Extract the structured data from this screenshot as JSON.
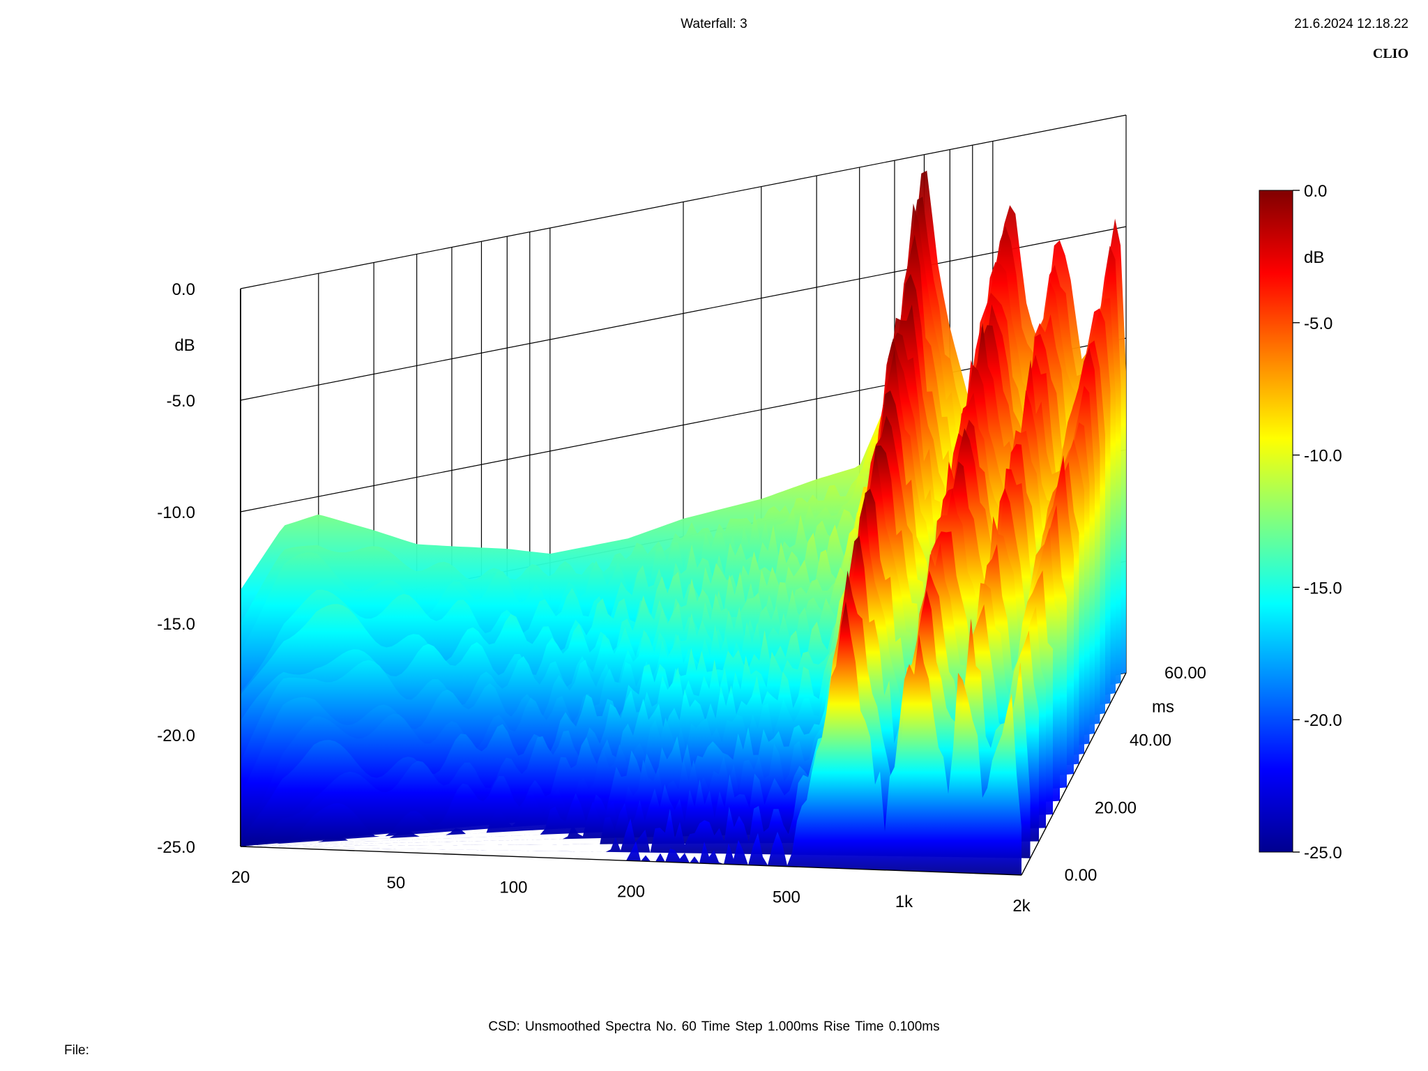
{
  "header": {
    "title": "Waterfall: 3",
    "datetime": "21.6.2024 12.18.22",
    "brand": "CLIO"
  },
  "footer": {
    "settings": "CSD:   Unsmoothed   Spectra No. 60   Time Step 1.000ms   Rise Time 0.100ms",
    "file_label": "File:"
  },
  "chart_data": {
    "type": "waterfall",
    "x_axis": {
      "scale": "log",
      "range": [
        20,
        2000
      ],
      "ticks": [
        20,
        50,
        100,
        200,
        500,
        1000,
        2000
      ],
      "tick_labels": [
        "20",
        "50",
        "100",
        "200",
        "500",
        "1k",
        "2k"
      ]
    },
    "y_axis": {
      "range": [
        -25,
        0
      ],
      "ticks": [
        0,
        -5,
        -10,
        -15,
        -20,
        -25
      ],
      "tick_labels": [
        "0.0",
        "-5.0",
        "-10.0",
        "-15.0",
        "-20.0",
        "-25.0"
      ],
      "unit": "dB"
    },
    "z_axis": {
      "range": [
        0,
        60
      ],
      "ticks": [
        0,
        20,
        40,
        60
      ],
      "tick_labels": [
        "0.00",
        "20.00",
        "40.00",
        "60.00"
      ],
      "unit": "ms"
    },
    "colorbar": {
      "range": [
        -25,
        0
      ],
      "ticks": [
        0,
        -5,
        -10,
        -15,
        -20,
        -25
      ],
      "tick_labels": [
        "0.0",
        "-5.0",
        "-10.0",
        "-15.0",
        "-20.0",
        "-25.0"
      ],
      "unit": "dB"
    },
    "spectra_count": 60,
    "time_step_ms": 1.0,
    "rise_time_ms": 0.1,
    "initial_response": {
      "freq_hz": [
        20,
        25,
        30,
        40,
        50,
        60,
        80,
        100,
        150,
        200,
        300,
        400,
        500,
        600,
        700,
        800,
        900,
        1000,
        1100,
        1200,
        1300,
        1400,
        1500,
        1600,
        1700,
        1800,
        1900,
        2000
      ],
      "db": [
        -13.5,
        -11.0,
        -10.8,
        -12.0,
        -13.0,
        -13.4,
        -14.0,
        -14.6,
        -14.6,
        -14.2,
        -14.0,
        -13.6,
        -13.4,
        -10.0,
        -2.0,
        -8.0,
        -12.0,
        -6.0,
        -3.5,
        -8.0,
        -10.0,
        -5.0,
        -7.0,
        -11.0,
        -9.0,
        -8.0,
        -6.0,
        -13.0
      ]
    },
    "resonance_peaks": [
      {
        "freq_hz": 700,
        "peak_db": -0.5
      },
      {
        "freq_hz": 1100,
        "peak_db": -3.0
      },
      {
        "freq_hz": 1400,
        "peak_db": -5.0
      },
      {
        "freq_hz": 1900,
        "peak_db": -4.5
      }
    ],
    "colors": {
      "colormap": "jet",
      "low": "#00008f",
      "mid": "#00ffff",
      "high": "#ffff00",
      "top": "#800000"
    }
  }
}
